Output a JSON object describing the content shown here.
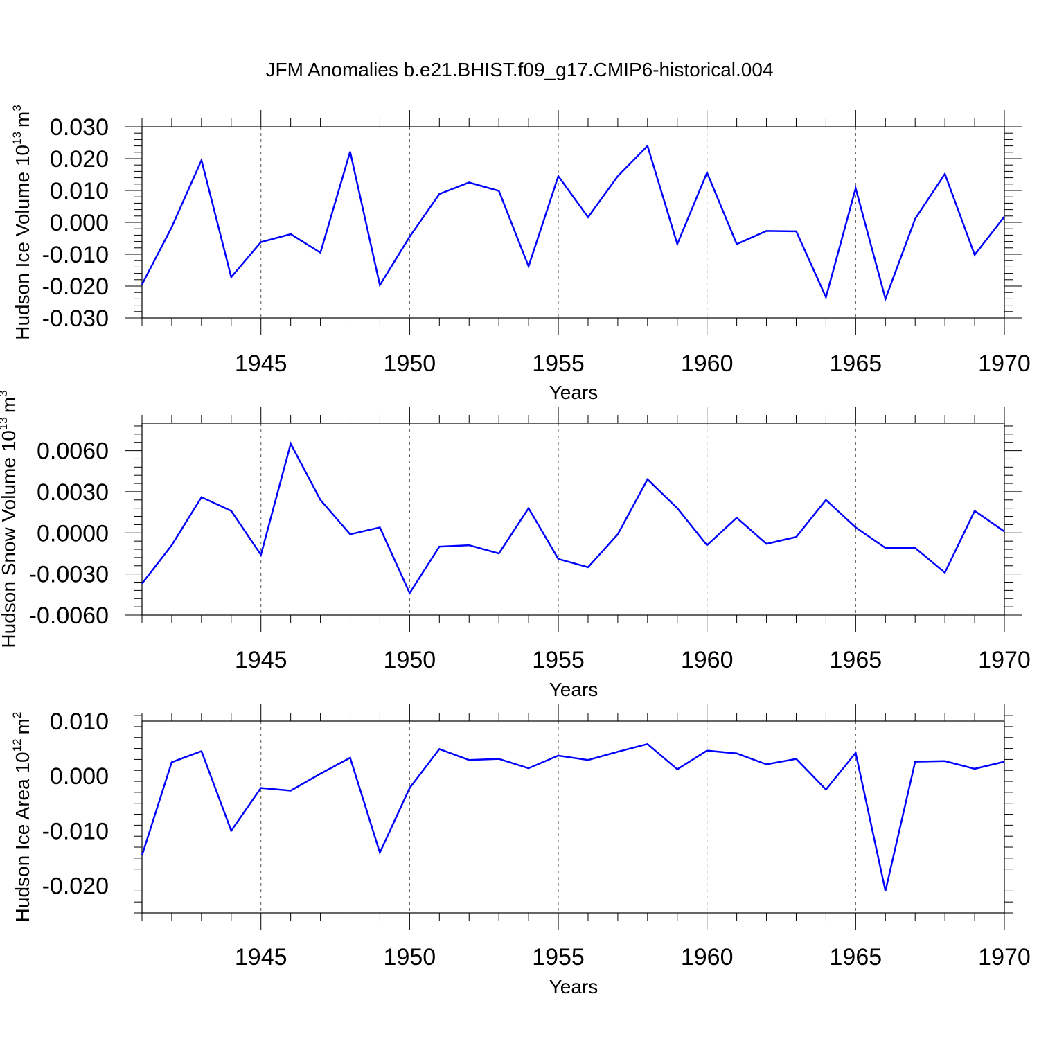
{
  "title": "JFM Anomalies b.e21.BHIST.f09_g17.CMIP6-historical.004",
  "colors": {
    "line": "#0000ff",
    "axes": "#000000",
    "grid": "#555555"
  },
  "chart_data": [
    {
      "type": "line",
      "id": "ice-volume",
      "ylabel": {
        "text": "Hudson Ice Volume 10",
        "exponent": "13",
        "unit": "m",
        "unit_exponent": "3"
      },
      "xlabel": "Years",
      "xlim": [
        1941,
        1970
      ],
      "ylim": [
        -0.03,
        0.03
      ],
      "yticks": [
        -0.03,
        -0.02,
        -0.01,
        0.0,
        0.01,
        0.02,
        0.03
      ],
      "ytick_labels": [
        "-0.030",
        "-0.020",
        "-0.010",
        "0.000",
        "0.010",
        "0.020",
        "0.030"
      ],
      "xticks": [
        1945,
        1950,
        1955,
        1960,
        1965,
        1970
      ],
      "xtick_labels": [
        "1945",
        "1950",
        "1955",
        "1960",
        "1965",
        "1970"
      ],
      "grid": "vertical dashed at major x ticks",
      "x": [
        1941,
        1942,
        1943,
        1944,
        1945,
        1946,
        1947,
        1948,
        1949,
        1950,
        1951,
        1952,
        1953,
        1954,
        1955,
        1956,
        1957,
        1958,
        1959,
        1960,
        1961,
        1962,
        1963,
        1964,
        1965,
        1966,
        1967,
        1968,
        1969,
        1970
      ],
      "series": [
        {
          "name": "Hudson Ice Volume",
          "values": [
            -0.0195,
            -0.0015,
            0.0195,
            -0.0172,
            -0.0062,
            -0.0037,
            -0.0095,
            0.0222,
            -0.0197,
            -0.0045,
            0.0089,
            0.0125,
            0.0099,
            -0.0138,
            0.0145,
            0.0016,
            0.0145,
            0.024,
            -0.0068,
            0.0156,
            -0.0068,
            -0.0027,
            -0.0028,
            -0.0235,
            0.0107,
            -0.024,
            0.0011,
            0.0152,
            -0.0102,
            0.0018
          ]
        }
      ]
    },
    {
      "type": "line",
      "id": "snow-volume",
      "ylabel": {
        "text": "Hudson Snow Volume 10",
        "exponent": "13",
        "unit": "m",
        "unit_exponent": "3"
      },
      "xlabel": "Years",
      "xlim": [
        1941,
        1970
      ],
      "ylim": [
        -0.006,
        0.008
      ],
      "yticks": [
        -0.006,
        -0.003,
        0.0,
        0.003,
        0.006
      ],
      "ytick_labels": [
        "-0.0060",
        "-0.0030",
        "0.0000",
        "0.0030",
        "0.0060"
      ],
      "xticks": [
        1945,
        1950,
        1955,
        1960,
        1965,
        1970
      ],
      "xtick_labels": [
        "1945",
        "1950",
        "1955",
        "1960",
        "1965",
        "1970"
      ],
      "grid": "vertical dashed at major x ticks",
      "x": [
        1941,
        1942,
        1943,
        1944,
        1945,
        1946,
        1947,
        1948,
        1949,
        1950,
        1951,
        1952,
        1953,
        1954,
        1955,
        1956,
        1957,
        1958,
        1959,
        1960,
        1961,
        1962,
        1963,
        1964,
        1965,
        1966,
        1967,
        1968,
        1969,
        1970
      ],
      "series": [
        {
          "name": "Hudson Snow Volume",
          "values": [
            -0.0037,
            -0.0009,
            0.0026,
            0.0016,
            -0.0016,
            0.0065,
            0.0024,
            -0.0001,
            0.0004,
            -0.0044,
            -0.001,
            -0.0009,
            -0.0015,
            0.0018,
            -0.0019,
            -0.0025,
            -0.0001,
            0.0039,
            0.0018,
            -0.0009,
            0.0011,
            -0.0008,
            -0.0003,
            0.0024,
            0.0004,
            -0.0011,
            -0.0011,
            -0.0029,
            0.0016,
            0.0001
          ]
        }
      ]
    },
    {
      "type": "line",
      "id": "ice-area",
      "ylabel": {
        "text": "Hudson Ice Area 10",
        "exponent": "12",
        "unit": "m",
        "unit_exponent": "2"
      },
      "xlabel": "Years",
      "xlim": [
        1941,
        1970
      ],
      "ylim": [
        -0.025,
        0.01
      ],
      "yticks": [
        -0.02,
        -0.01,
        0.0,
        0.01
      ],
      "ytick_labels": [
        "-0.020",
        "-0.010",
        "0.000",
        "0.010"
      ],
      "xticks": [
        1945,
        1950,
        1955,
        1960,
        1965,
        1970
      ],
      "xtick_labels": [
        "1945",
        "1950",
        "1955",
        "1960",
        "1965",
        "1970"
      ],
      "grid": "vertical dashed at major x ticks",
      "x": [
        1941,
        1942,
        1943,
        1944,
        1945,
        1946,
        1947,
        1948,
        1949,
        1950,
        1951,
        1952,
        1953,
        1954,
        1955,
        1956,
        1957,
        1958,
        1959,
        1960,
        1961,
        1962,
        1963,
        1964,
        1965,
        1966,
        1967,
        1968,
        1969,
        1970
      ],
      "series": [
        {
          "name": "Hudson Ice Area",
          "values": [
            -0.0145,
            0.0025,
            0.0045,
            -0.01,
            -0.0022,
            -0.0027,
            0.0004,
            0.0033,
            -0.014,
            -0.0022,
            0.0049,
            0.0029,
            0.0031,
            0.0014,
            0.0037,
            0.0029,
            0.0044,
            0.0058,
            0.0012,
            0.0046,
            0.0041,
            0.0021,
            0.0031,
            -0.0025,
            0.0042,
            -0.021,
            0.0026,
            0.0027,
            0.0013,
            0.0026
          ]
        }
      ]
    }
  ]
}
